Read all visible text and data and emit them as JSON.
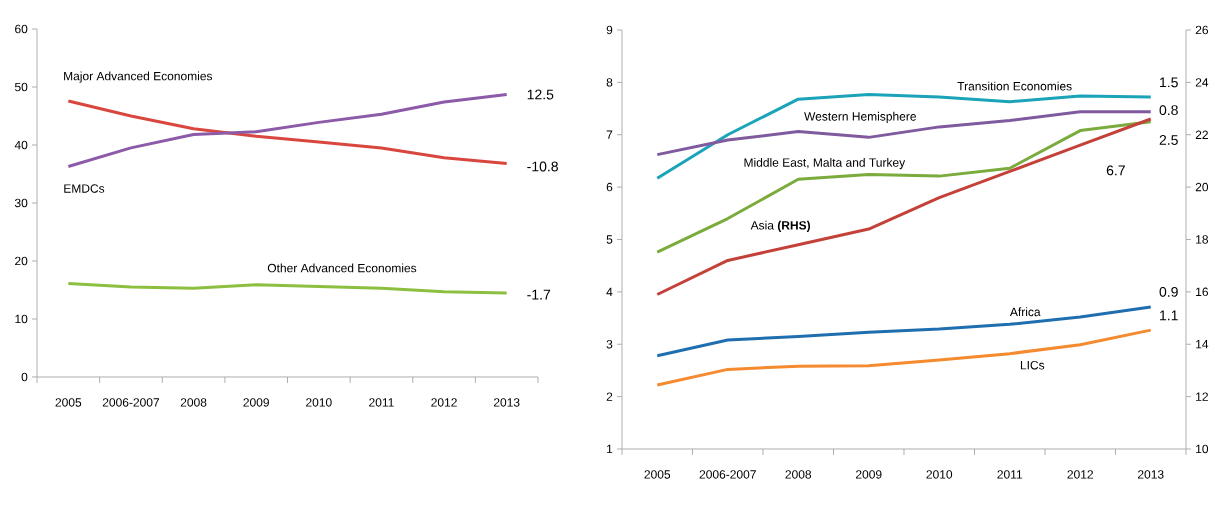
{
  "chart_data": [
    {
      "type": "line",
      "categories": [
        "2005",
        "2006-2007",
        "2008",
        "2009",
        "2010",
        "2011",
        "2012",
        "2013"
      ],
      "ylim": [
        0,
        60
      ],
      "yticks": [
        0,
        10,
        20,
        30,
        40,
        50,
        60
      ],
      "marker": "none",
      "line_style": "solid",
      "series": [
        {
          "name": "Major Advanced Economies",
          "color": "#d9463e",
          "values": [
            47.6,
            45.0,
            42.8,
            41.5,
            40.5,
            39.5,
            37.8,
            36.8
          ]
        },
        {
          "name": "EMDCs",
          "color": "#8c5aa8",
          "values": [
            36.3,
            39.5,
            41.8,
            42.3,
            43.9,
            45.3,
            47.4,
            48.7
          ]
        },
        {
          "name": "Other Advanced Economies",
          "color": "#8cbf3f",
          "values": [
            16.1,
            15.5,
            15.3,
            15.9,
            15.6,
            15.3,
            14.7,
            14.5
          ]
        }
      ],
      "annotations": [
        "12.5",
        "-10.8",
        "-1.7"
      ]
    },
    {
      "type": "line",
      "categories": [
        "2005",
        "2006-2007",
        "2008",
        "2009",
        "2010",
        "2011",
        "2012",
        "2013"
      ],
      "ylim": [
        1,
        9
      ],
      "yticks": [
        1,
        2,
        3,
        4,
        5,
        6,
        7,
        8,
        9
      ],
      "y2lim": [
        10,
        26
      ],
      "y2ticks": [
        10,
        12,
        14,
        16,
        18,
        20,
        22,
        24,
        26
      ],
      "marker": "none",
      "line_style": "solid",
      "series": [
        {
          "name": "Transition Economies",
          "color": "#1aa3b9",
          "values": [
            6.17,
            7.0,
            7.68,
            7.77,
            7.72,
            7.63,
            7.74,
            7.72
          ]
        },
        {
          "name": "Western Hemisphere",
          "color": "#7f5a9e",
          "values": [
            6.62,
            6.9,
            7.06,
            6.95,
            7.15,
            7.27,
            7.44,
            7.44
          ]
        },
        {
          "name": "Middle East, Malta and Turkey",
          "color": "#7aab3c",
          "values": [
            4.76,
            5.4,
            6.15,
            6.24,
            6.21,
            6.36,
            7.08,
            7.25
          ]
        },
        {
          "name": "Asia **(RHS)**",
          "color": "#c4413a",
          "axis": "y2",
          "values": [
            15.9,
            17.2,
            17.8,
            18.4,
            19.6,
            20.6,
            21.6,
            22.6
          ]
        },
        {
          "name": "Africa",
          "color": "#1f6fb0",
          "values": [
            2.78,
            3.08,
            3.15,
            3.23,
            3.29,
            3.38,
            3.52,
            3.71
          ]
        },
        {
          "name": "LICs",
          "color": "#f58a2e",
          "values": [
            2.22,
            2.52,
            2.58,
            2.59,
            2.7,
            2.82,
            2.99,
            3.27
          ]
        }
      ],
      "annotations": [
        "1.5",
        "0.8",
        "2.5",
        "6.7",
        "0.9",
        "1.1"
      ]
    }
  ]
}
